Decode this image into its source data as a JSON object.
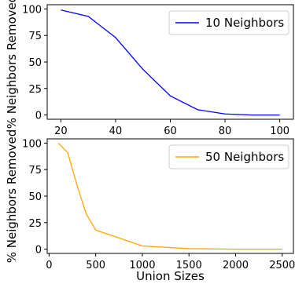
{
  "chart_data": [
    {
      "type": "line",
      "ylabel": "% Neighbors Removed",
      "xlabel": "",
      "xlim": [
        15,
        105
      ],
      "ylim": [
        -4,
        104
      ],
      "xticks": [
        20,
        40,
        60,
        80,
        100
      ],
      "yticks": [
        0,
        25,
        50,
        75,
        100
      ],
      "legend_position": "top-right",
      "series": [
        {
          "name": "10 Neighbors",
          "color": "#0000ff",
          "x": [
            20,
            30,
            40,
            50,
            60,
            70,
            80,
            90,
            100
          ],
          "y": [
            99,
            93,
            73,
            43,
            18,
            5,
            1,
            0,
            0
          ]
        }
      ]
    },
    {
      "type": "line",
      "ylabel": "% Neighbors Removed",
      "xlabel": "Union Sizes",
      "xlim": [
        -20,
        2620
      ],
      "ylim": [
        -4,
        104
      ],
      "xticks": [
        0,
        500,
        1000,
        1500,
        2000,
        2500
      ],
      "yticks": [
        0,
        25,
        50,
        75,
        100
      ],
      "legend_position": "top-right",
      "series": [
        {
          "name": "50 Neighbors",
          "color": "#ffa500",
          "x": [
            100,
            200,
            300,
            400,
            500,
            1000,
            1500,
            2000,
            2500
          ],
          "y": [
            100,
            91,
            60,
            33,
            18,
            3,
            0.5,
            0,
            0
          ]
        }
      ]
    }
  ]
}
